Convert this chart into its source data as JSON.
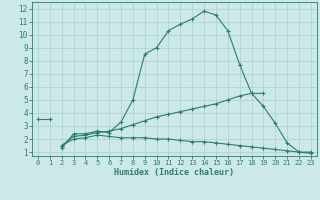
{
  "xlabel": "Humidex (Indice chaleur)",
  "bg_color": "#cce8e8",
  "grid_color": "#aacfcf",
  "line_color": "#2d7d6e",
  "xlim": [
    -0.5,
    23.5
  ],
  "ylim": [
    0.7,
    12.5
  ],
  "xticks": [
    0,
    1,
    2,
    3,
    4,
    5,
    6,
    7,
    8,
    9,
    10,
    11,
    12,
    13,
    14,
    15,
    16,
    17,
    18,
    19,
    20,
    21,
    22,
    23
  ],
  "yticks": [
    1,
    2,
    3,
    4,
    5,
    6,
    7,
    8,
    9,
    10,
    11,
    12
  ],
  "series": [
    {
      "x": [
        0,
        1
      ],
      "y": [
        3.5,
        3.5
      ]
    },
    {
      "x": [
        2,
        3,
        4,
        5,
        6,
        7,
        8,
        9,
        10,
        11,
        12,
        13,
        14,
        15,
        16,
        17,
        18,
        19
      ],
      "y": [
        1.3,
        2.4,
        2.4,
        2.6,
        2.5,
        3.3,
        5.0,
        8.5,
        9.0,
        10.3,
        10.8,
        11.2,
        11.8,
        11.5,
        10.3,
        7.7,
        5.5,
        5.5
      ]
    },
    {
      "x": [
        2,
        3,
        4,
        5,
        6,
        7,
        8,
        9,
        10,
        11,
        12,
        13,
        14,
        15,
        16,
        17,
        18,
        19,
        20,
        21,
        22,
        23
      ],
      "y": [
        1.5,
        2.2,
        2.3,
        2.5,
        2.6,
        2.8,
        3.1,
        3.4,
        3.7,
        3.9,
        4.1,
        4.3,
        4.5,
        4.7,
        5.0,
        5.3,
        5.5,
        4.5,
        3.2,
        1.7,
        1.0,
        1.0
      ]
    },
    {
      "x": [
        2,
        3,
        4,
        5,
        6,
        7,
        8,
        9,
        10,
        11,
        12,
        13,
        14,
        15,
        16,
        17,
        18,
        19,
        20,
        21,
        22,
        23
      ],
      "y": [
        1.5,
        2.0,
        2.1,
        2.3,
        2.2,
        2.1,
        2.1,
        2.1,
        2.0,
        2.0,
        1.9,
        1.8,
        1.8,
        1.7,
        1.6,
        1.5,
        1.4,
        1.3,
        1.2,
        1.1,
        1.0,
        0.9
      ]
    }
  ]
}
